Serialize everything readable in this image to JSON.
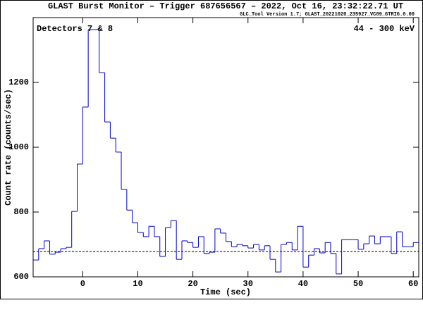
{
  "chart_data": {
    "type": "histogram",
    "title": "GLAST Burst Monitor  –  Trigger 687656567  –  2022, Oct 16, 23:32:22.71 UT",
    "subtitle": "GLC_Tool Version 1.7; GLAST_20221020_235927_VC09_GTRIG.0.00",
    "annotations": [
      "Detectors 7 & 8",
      "44 - 300 keV"
    ],
    "x_label": "Time (sec)",
    "y_label": "Count rate (counts/sec)",
    "bins": [
      -9,
      -8,
      -7,
      -6,
      -5,
      -4,
      -3,
      -2,
      -1,
      0,
      1,
      2,
      3,
      4,
      5,
      6,
      7,
      8,
      9,
      10,
      11,
      12,
      13,
      14,
      15,
      16,
      17,
      18,
      19,
      20,
      21,
      22,
      23,
      24,
      25,
      26,
      27,
      28,
      29,
      30,
      31,
      32,
      33,
      34,
      35,
      36,
      37,
      38,
      39,
      40,
      41,
      42,
      43,
      44,
      45,
      46,
      47,
      48,
      49,
      50,
      51,
      52,
      53,
      54,
      55,
      56,
      57,
      58,
      59,
      60,
      61
    ],
    "values": [
      652,
      687,
      711,
      670,
      676,
      687,
      691,
      802,
      948,
      1124,
      1363,
      1363,
      1230,
      1078,
      1028,
      985,
      870,
      806,
      767,
      737,
      724,
      756,
      724,
      663,
      752,
      774,
      654,
      711,
      706,
      691,
      724,
      672,
      676,
      748,
      735,
      709,
      693,
      700,
      696,
      689,
      700,
      683,
      696,
      654,
      615,
      700,
      706,
      683,
      756,
      630,
      667,
      687,
      674,
      706,
      672,
      609,
      715,
      715,
      715,
      685,
      702,
      726,
      702,
      724,
      724,
      672,
      739,
      693,
      693,
      706
    ],
    "color": "#0000cc",
    "background": 678,
    "xlim": [
      -9,
      61
    ],
    "ylim": [
      600,
      1400
    ],
    "xticks": [
      0,
      10,
      20,
      30,
      40,
      50,
      60
    ],
    "yticks": [
      600,
      800,
      1000,
      1200
    ]
  }
}
